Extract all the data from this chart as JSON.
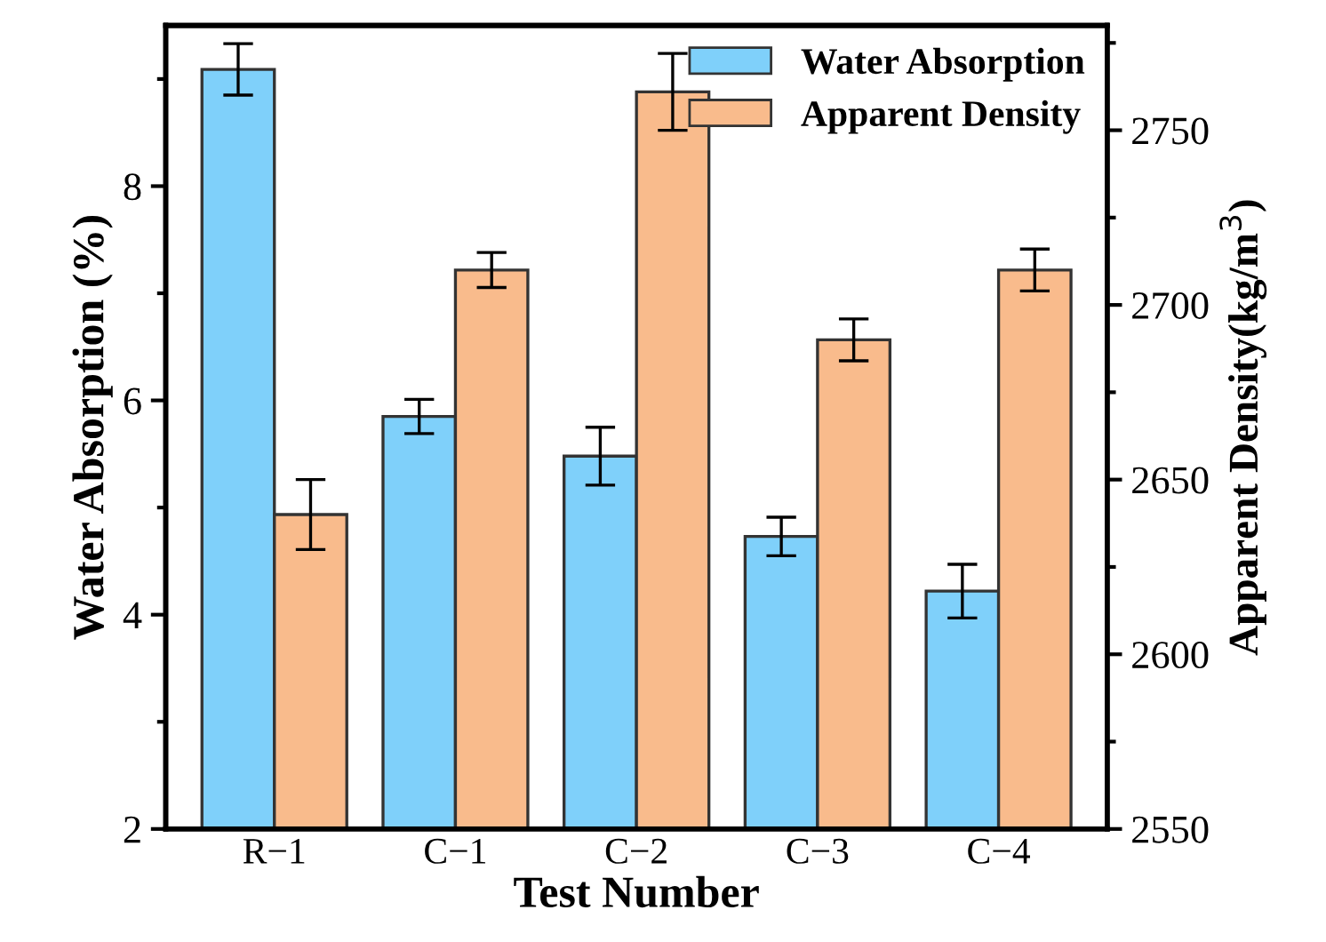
{
  "chart_data": {
    "type": "bar",
    "xlabel": "Test Number",
    "ylabel": "Water Absorption (%)",
    "y2label": "Apparent Density(kg/m$^{3}$)",
    "categories": [
      "R−1",
      "C−1",
      "C−2",
      "C−3",
      "C−4"
    ],
    "series": [
      {
        "name": "Water Absorption",
        "color": "#7fd0fa",
        "values": [
          9.09,
          5.85,
          5.48,
          4.73,
          4.22
        ],
        "errors": [
          0.24,
          0.16,
          0.27,
          0.18,
          0.25
        ]
      },
      {
        "name": "Apparent Density",
        "color": "#f9bb8c",
        "axis": "y2",
        "values": [
          2640,
          2710,
          2761,
          2690,
          2710
        ],
        "errors": [
          10,
          5,
          11,
          6,
          6
        ]
      }
    ],
    "ylim": [
      2,
      9.5
    ],
    "yticks": [
      2,
      {
        "value": 3,
        "label": null
      },
      4,
      {
        "value": 5,
        "label": null
      },
      6,
      {
        "value": 7,
        "label": null
      },
      8,
      {
        "value": 9,
        "label": null
      }
    ],
    "y2lim": [
      2550,
      2780
    ],
    "y2ticks": [
      2550,
      {
        "value": 2575,
        "label": null
      },
      2600,
      {
        "value": 2625,
        "label": null
      },
      2650,
      {
        "value": 2675,
        "label": null
      },
      2700,
      {
        "value": 2725,
        "label": null
      },
      2750,
      {
        "value": 2775,
        "label": null
      }
    ],
    "legend": "top right",
    "grid": false
  }
}
